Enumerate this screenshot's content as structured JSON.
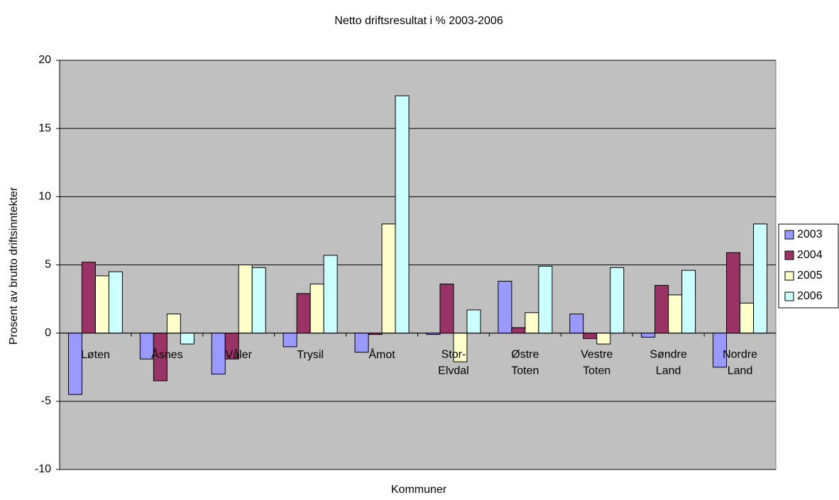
{
  "chart_data": {
    "type": "bar",
    "title": "Netto driftsresultat i % 2003-2006",
    "x_label": "Kommuner",
    "y_label": "Prosent av brutto driftsinntekter",
    "categories": [
      "Løten",
      "Åsnes",
      "Våler",
      "Trysil",
      "Åmot",
      "Stor-Elvdal",
      "Østre Toten",
      "Vestre Toten",
      "Søndre Land",
      "Nordre Land"
    ],
    "series": [
      {
        "name": "2003",
        "color": "#9999ff",
        "values": [
          -4.5,
          -1.9,
          -3.0,
          -1.0,
          -1.4,
          -0.1,
          3.8,
          1.4,
          -0.3,
          -2.5
        ]
      },
      {
        "name": "2004",
        "color": "#993366",
        "values": [
          5.2,
          -3.5,
          -1.9,
          2.9,
          -0.1,
          3.6,
          0.4,
          -0.4,
          3.5,
          5.9
        ]
      },
      {
        "name": "2005",
        "color": "#ffffcc",
        "values": [
          4.2,
          1.4,
          5.0,
          3.6,
          8.0,
          -2.1,
          1.5,
          -0.8,
          2.8,
          2.2
        ]
      },
      {
        "name": "2006",
        "color": "#ccffff",
        "values": [
          4.5,
          -0.8,
          4.8,
          5.7,
          17.4,
          1.7,
          4.9,
          4.8,
          4.6,
          8.0
        ]
      }
    ],
    "ylim": [
      -10,
      20
    ],
    "yticks": [
      -10,
      -5,
      0,
      5,
      10,
      15,
      20
    ],
    "grid": true,
    "legend": "right"
  }
}
